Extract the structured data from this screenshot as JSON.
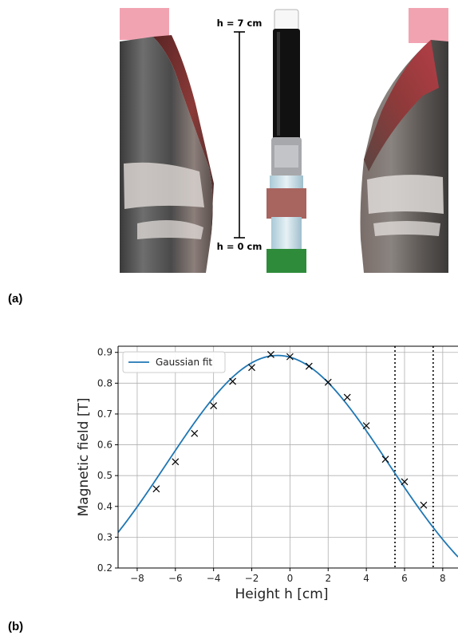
{
  "panel_a": {
    "label": "(a)",
    "top_marker": "h = 7 cm",
    "bottom_marker": "h = 0 cm"
  },
  "panel_b": {
    "label": "(b)"
  },
  "chart_data": {
    "type": "scatter",
    "title": "",
    "xlabel": "Height h [cm]",
    "ylabel": "Magnetic field [T]",
    "xlim": [
      -9,
      8.8
    ],
    "ylim": [
      0.2,
      0.92
    ],
    "xticks": [
      -8,
      -6,
      -4,
      -2,
      0,
      2,
      4,
      6,
      8
    ],
    "xtick_labels": [
      "−8",
      "−6",
      "−4",
      "−2",
      "0",
      "2",
      "4",
      "6",
      "8"
    ],
    "yticks": [
      0.2,
      0.3,
      0.4,
      0.5,
      0.6,
      0.7,
      0.8,
      0.9
    ],
    "ytick_labels": [
      "0.2",
      "0.3",
      "0.4",
      "0.5",
      "0.6",
      "0.7",
      "0.8",
      "0.9"
    ],
    "grid": true,
    "legend_position": "top-left",
    "series": [
      {
        "name": "Gaussian fit",
        "kind": "line",
        "color": "#1f77b4",
        "amplitude": 0.89,
        "center": -0.65,
        "sigma": 5.8
      },
      {
        "kind": "markers",
        "marker": "x",
        "color": "#000000",
        "x": [
          -7,
          -6,
          -5,
          -4,
          -3,
          -2,
          -1,
          0,
          1,
          2,
          3,
          4,
          5,
          6,
          7
        ],
        "y": [
          0.457,
          0.545,
          0.637,
          0.727,
          0.806,
          0.851,
          0.893,
          0.886,
          0.855,
          0.803,
          0.754,
          0.662,
          0.553,
          0.48,
          0.404
        ]
      }
    ],
    "vlines": [
      {
        "x": 5.5,
        "style": "dotted",
        "color": "#000000"
      },
      {
        "x": 7.5,
        "style": "dotted",
        "color": "#000000"
      }
    ]
  }
}
